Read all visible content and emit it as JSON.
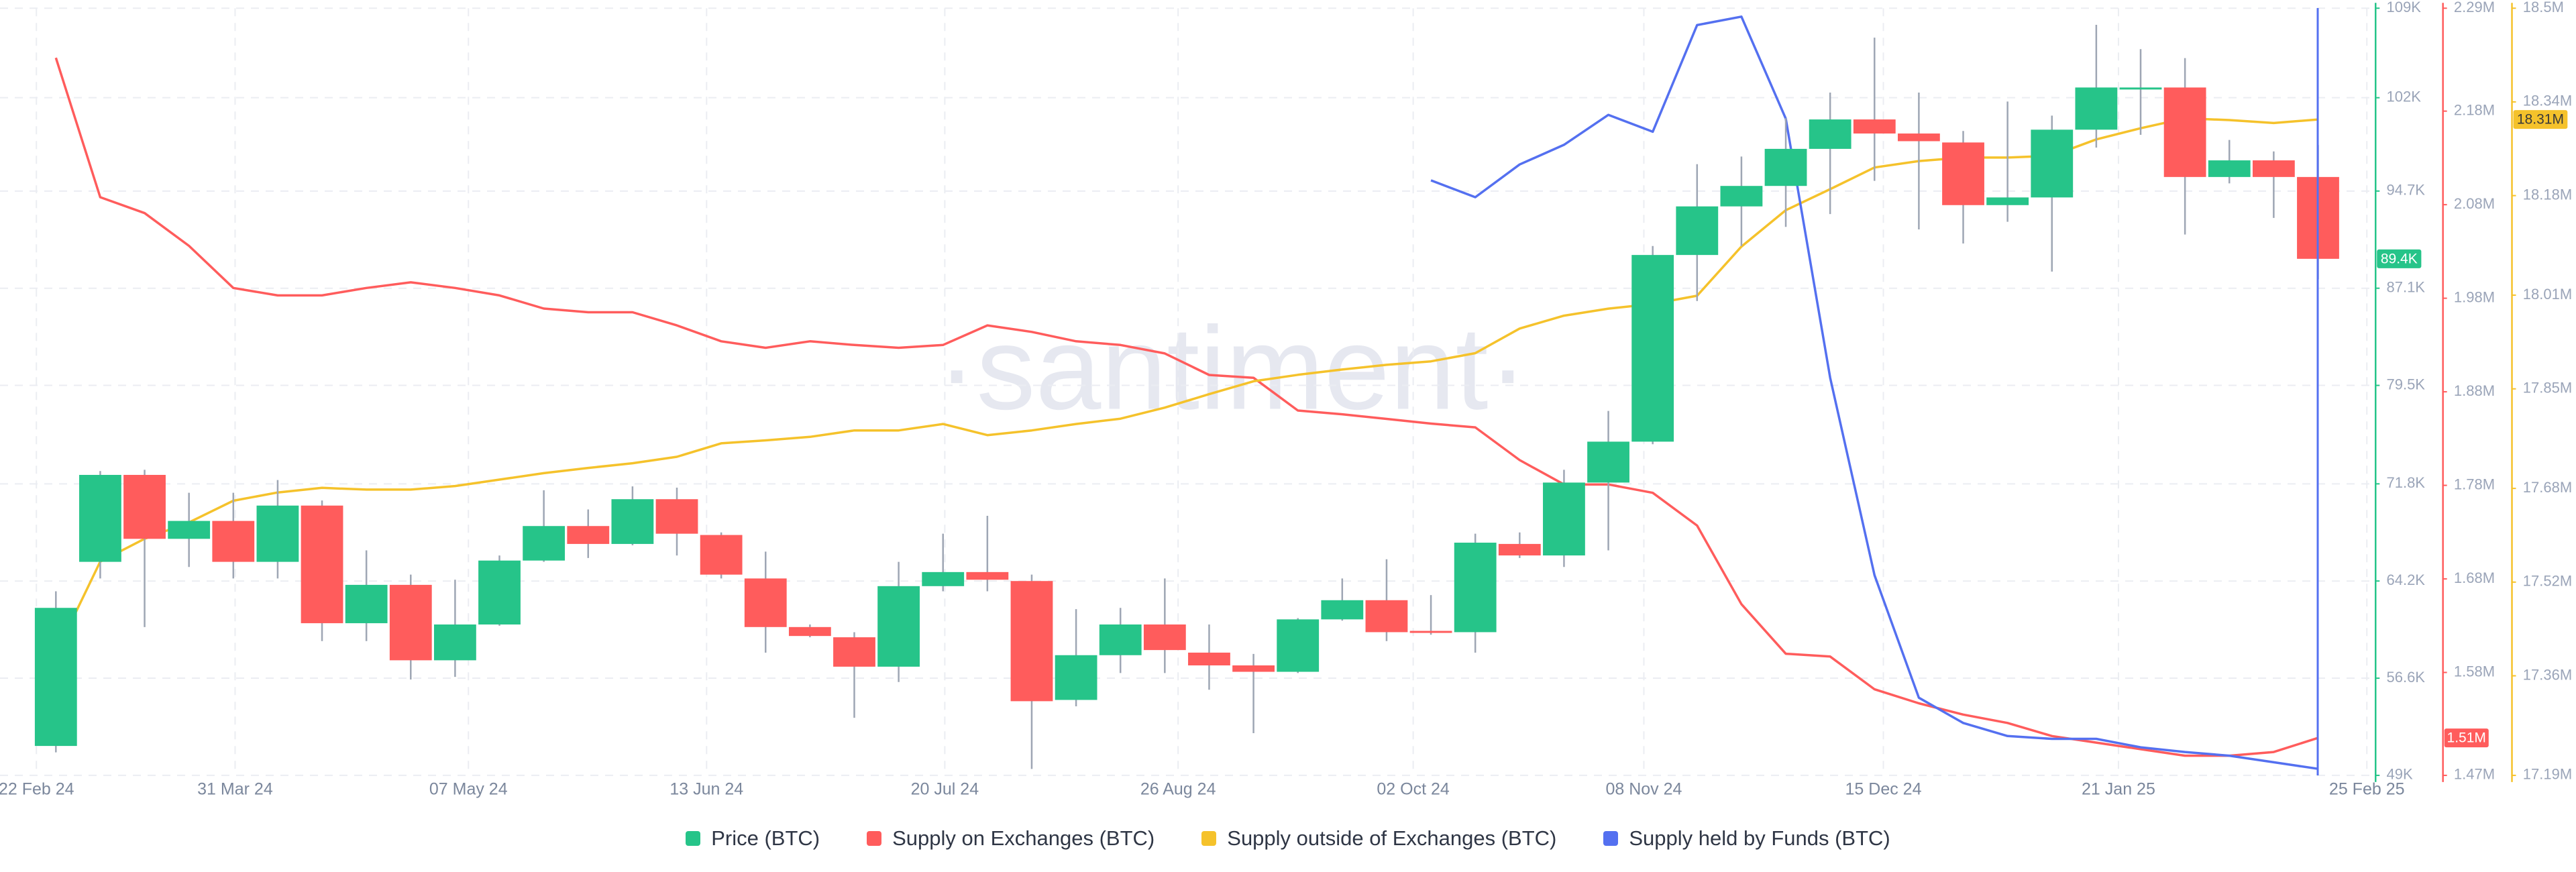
{
  "chart_data": {
    "type": "candlestick",
    "watermark": "·santiment·",
    "grid": true,
    "legend": "bottom",
    "xlim": [
      -1.26,
      52.26
    ],
    "xticks": [
      {
        "value": -0.44,
        "label": "22 Feb 24"
      },
      {
        "value": 4.04,
        "label": "31 Mar 24"
      },
      {
        "value": 9.3,
        "label": "07 May 24"
      },
      {
        "value": 14.67,
        "label": "13 Jun 24"
      },
      {
        "value": 20.04,
        "label": "20 Jul 24"
      },
      {
        "value": 25.3,
        "label": "26 Aug 24"
      },
      {
        "value": 30.6,
        "label": "02 Oct 24"
      },
      {
        "value": 35.8,
        "label": "08 Nov 24"
      },
      {
        "value": 41.2,
        "label": "15 Dec 24"
      },
      {
        "value": 46.5,
        "label": "21 Jan 25"
      },
      {
        "value": 52.1,
        "label": "25 Feb 25"
      }
    ],
    "ylim": [
      49000,
      109000
    ],
    "yticks": [
      {
        "value": 49000,
        "label": "49K"
      },
      {
        "value": 56600,
        "label": "56.6K"
      },
      {
        "value": 64200,
        "label": "64.2K"
      },
      {
        "value": 71800,
        "label": "71.8K"
      },
      {
        "value": 79500,
        "label": "79.5K"
      },
      {
        "value": 87100,
        "label": "87.1K"
      },
      {
        "value": 94700,
        "label": "94.7K"
      },
      {
        "value": 102000,
        "label": "102K"
      },
      {
        "value": 109000,
        "label": "109K"
      }
    ],
    "y2lim": [
      1470000,
      2290000
    ],
    "y2ticks": [
      {
        "value": 1470000,
        "label": "1.47M"
      },
      {
        "value": 1580000,
        "label": "1.58M"
      },
      {
        "value": 1680000,
        "label": "1.68M"
      },
      {
        "value": 1780000,
        "label": "1.78M"
      },
      {
        "value": 1880000,
        "label": "1.88M"
      },
      {
        "value": 1980000,
        "label": "1.98M"
      },
      {
        "value": 2080000,
        "label": "2.08M"
      },
      {
        "value": 2180000,
        "label": "2.18M"
      },
      {
        "value": 2290000,
        "label": "2.29M"
      }
    ],
    "y3lim": [
      17190000,
      18500000
    ],
    "y3ticks": [
      {
        "value": 17190000,
        "label": "17.19M"
      },
      {
        "value": 17360000,
        "label": "17.36M"
      },
      {
        "value": 17520000,
        "label": "17.52M"
      },
      {
        "value": 17680000,
        "label": "17.68M"
      },
      {
        "value": 17850000,
        "label": "17.85M"
      },
      {
        "value": 18010000,
        "label": "18.01M"
      },
      {
        "value": 18180000,
        "label": "18.18M"
      },
      {
        "value": 18340000,
        "label": "18.34M"
      },
      {
        "value": 18500000,
        "label": "18.5M"
      }
    ],
    "series": [
      {
        "name": "Price (BTC)",
        "type": "candlestick",
        "axis": "y",
        "color": "#26c489",
        "down_color": "#ff5c5c",
        "open": [
          51300,
          65700,
          72500,
          67500,
          68900,
          65700,
          70100,
          60900,
          63900,
          58000,
          60800,
          65800,
          68500,
          67100,
          70600,
          67800,
          64400,
          60600,
          59800,
          57500,
          63800,
          64900,
          64200,
          54900,
          58400,
          60800,
          58600,
          57600,
          57100,
          61200,
          62700,
          60300,
          60200,
          67100,
          66200,
          71900,
          75100,
          89700,
          93500,
          95100,
          98000,
          100300,
          99200,
          98500,
          93600,
          94200,
          99500,
          102700,
          102800,
          95800,
          97100,
          95800
        ],
        "high": [
          63400,
          72800,
          72900,
          71100,
          71100,
          72100,
          70500,
          66600,
          64700,
          64300,
          66200,
          71300,
          69800,
          71600,
          71500,
          68000,
          66500,
          60800,
          60200,
          65700,
          67900,
          69300,
          64700,
          62000,
          62100,
          64400,
          60800,
          58500,
          61300,
          64400,
          65900,
          63100,
          67900,
          68000,
          72900,
          77500,
          90400,
          96800,
          97400,
          100400,
          102400,
          106700,
          102400,
          99400,
          101700,
          100600,
          107700,
          105800,
          105100,
          98700,
          97800,
          98300
        ],
        "low": [
          50800,
          64400,
          60600,
          65300,
          64400,
          64400,
          59500,
          59500,
          56500,
          56700,
          60700,
          65700,
          66000,
          67000,
          66200,
          64400,
          58600,
          59800,
          53500,
          56300,
          63400,
          63400,
          49500,
          54400,
          57000,
          57000,
          55700,
          52300,
          57000,
          61100,
          59500,
          60000,
          58600,
          66000,
          65300,
          66600,
          74900,
          86100,
          90400,
          91900,
          92900,
          95500,
          91700,
          90600,
          92300,
          88400,
          98100,
          99100,
          91300,
          95300,
          92600,
          87800
        ],
        "close": [
          62100,
          72500,
          67500,
          68900,
          65700,
          70100,
          60900,
          63900,
          58000,
          60800,
          65800,
          68500,
          67100,
          70600,
          67900,
          64700,
          60600,
          59900,
          57500,
          63800,
          64900,
          64300,
          54800,
          58400,
          60800,
          58800,
          57600,
          57100,
          61200,
          62700,
          60200,
          60200,
          67200,
          66200,
          71900,
          75100,
          89700,
          93500,
          95100,
          98000,
          100300,
          99200,
          98600,
          93600,
          94200,
          99500,
          102800,
          102800,
          95800,
          97100,
          95800,
          89400
        ],
        "last_label": {
          "value": 89400,
          "label": "89.4K"
        }
      },
      {
        "name": "Supply on Exchanges (BTC)",
        "type": "line",
        "axis": "y2",
        "color": "#ff5c5c",
        "values": [
          2237000,
          2088000,
          2071000,
          2036000,
          1991000,
          1983000,
          1983000,
          1991000,
          1997000,
          1991000,
          1983000,
          1969000,
          1965000,
          1965000,
          1951000,
          1934000,
          1927000,
          1934000,
          1930000,
          1927000,
          1930000,
          1951000,
          1944000,
          1934000,
          1930000,
          1921000,
          1898000,
          1895000,
          1860000,
          1856000,
          1851000,
          1846000,
          1842000,
          1807000,
          1781000,
          1781000,
          1772000,
          1737000,
          1653000,
          1600000,
          1597000,
          1562000,
          1547000,
          1535000,
          1526000,
          1512000,
          1505000,
          1498000,
          1491000,
          1491000,
          1495000,
          1510000
        ],
        "last_label": {
          "value": 1510000,
          "label": "1.51M"
        }
      },
      {
        "name": "Supply outside of Exchanges (BTC)",
        "type": "line",
        "axis": "y3",
        "color": "#f5c22b",
        "values": [
          17398000,
          17555000,
          17594000,
          17622000,
          17659000,
          17673000,
          17681000,
          17678000,
          17678000,
          17684000,
          17695000,
          17706000,
          17715000,
          17723000,
          17734000,
          17757000,
          17762000,
          17768000,
          17779000,
          17779000,
          17790000,
          17771000,
          17779000,
          17790000,
          17799000,
          17818000,
          17841000,
          17863000,
          17874000,
          17883000,
          17891000,
          17897000,
          17911000,
          17953000,
          17975000,
          17987000,
          17995000,
          18009000,
          18093000,
          18155000,
          18191000,
          18228000,
          18239000,
          18245000,
          18245000,
          18248000,
          18276000,
          18295000,
          18312000,
          18309000,
          18304000,
          18310000
        ],
        "last_label": {
          "value": 18310000,
          "label": "18.31M"
        }
      },
      {
        "name": "Supply held by Funds (BTC)",
        "type": "line",
        "axis": "y2",
        "color": "#5470f0",
        "values": [
          null,
          null,
          null,
          null,
          null,
          null,
          null,
          null,
          null,
          null,
          null,
          null,
          null,
          null,
          null,
          null,
          null,
          null,
          null,
          null,
          null,
          null,
          null,
          null,
          null,
          null,
          null,
          null,
          null,
          null,
          null,
          2106000,
          2088000,
          2123000,
          2144000,
          2176000,
          2158000,
          2272000,
          2281000,
          2172000,
          1895000,
          1684000,
          1553000,
          1526000,
          1512000,
          1509000,
          1509000,
          1500000,
          1495000,
          1491000,
          1484000,
          1477000
        ]
      }
    ]
  }
}
